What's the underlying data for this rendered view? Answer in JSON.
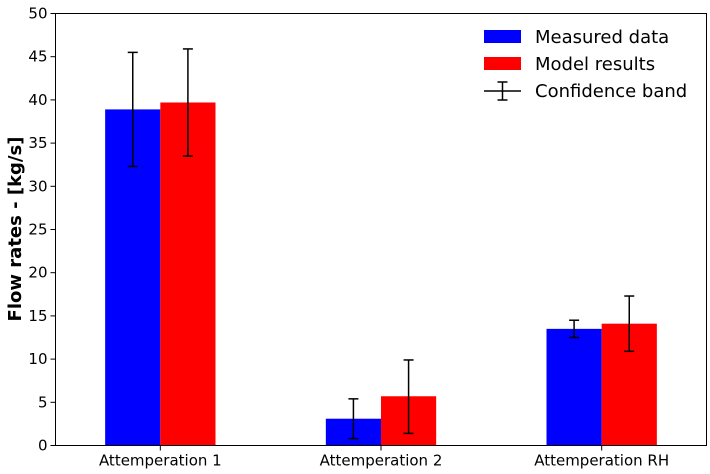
{
  "chart_data": {
    "type": "bar",
    "title": "",
    "xlabel": "",
    "ylabel": "Flow rates - [kg/s]",
    "ylim": [
      0,
      50
    ],
    "yticks": [
      0,
      5,
      10,
      15,
      20,
      25,
      30,
      35,
      40,
      45,
      50
    ],
    "categories": [
      "Attemperation 1",
      "Attemperation 2",
      "Attemperation RH"
    ],
    "series": [
      {
        "name": "Measured data",
        "color": "#0000ff",
        "values": [
          38.9,
          3.1,
          13.5
        ],
        "error_low": [
          32.3,
          0.8,
          12.5
        ],
        "error_high": [
          45.5,
          5.4,
          14.5
        ]
      },
      {
        "name": "Model results",
        "color": "#ff0000",
        "values": [
          39.7,
          5.7,
          14.1
        ],
        "error_low": [
          33.5,
          1.4,
          10.9
        ],
        "error_high": [
          45.9,
          9.9,
          17.3
        ]
      }
    ],
    "error_label": "Confidence band",
    "legend": "top-right",
    "grid": false
  }
}
